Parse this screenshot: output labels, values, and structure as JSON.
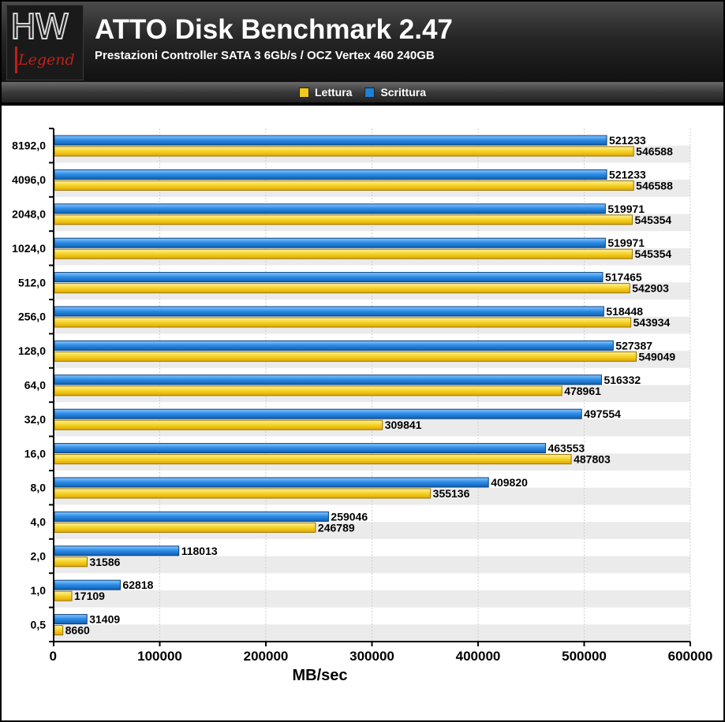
{
  "header": {
    "title": "ATTO Disk Benchmark 2.47",
    "subtitle": "Prestazioni Controller SATA 3 6Gb/s / OCZ Vertex 460 240GB",
    "logo_text": "HW",
    "logo_subtext": "Legend"
  },
  "colors": {
    "lettura": "#f2c81e",
    "scrittura": "#1f7fd6",
    "background": "#000000"
  },
  "chart_data": {
    "type": "bar",
    "orientation": "horizontal",
    "title": "ATTO Disk Benchmark 2.47",
    "subtitle": "Prestazioni Controller SATA 3 6Gb/s / OCZ Vertex 460 240GB",
    "xlabel": "MB/sec",
    "ylabel": "",
    "xlim": [
      0,
      600000
    ],
    "xticks": [
      0,
      100000,
      200000,
      300000,
      400000,
      500000,
      600000
    ],
    "grid": true,
    "legend_position": "top-center",
    "categories": [
      "8192,0",
      "4096,0",
      "2048,0",
      "1024,0",
      "512,0",
      "256,0",
      "128,0",
      "64,0",
      "32,0",
      "16,0",
      "8,0",
      "4,0",
      "2,0",
      "1,0",
      "0,5"
    ],
    "series": [
      {
        "name": "Lettura",
        "values": [
          546588,
          546588,
          545354,
          545354,
          542903,
          543934,
          549049,
          478961,
          309841,
          487803,
          355136,
          246789,
          31586,
          17109,
          8660
        ]
      },
      {
        "name": "Scrittura",
        "values": [
          521233,
          521233,
          519971,
          519971,
          517465,
          518448,
          527387,
          516332,
          497554,
          463553,
          409820,
          259046,
          118013,
          62818,
          31409
        ]
      }
    ]
  }
}
